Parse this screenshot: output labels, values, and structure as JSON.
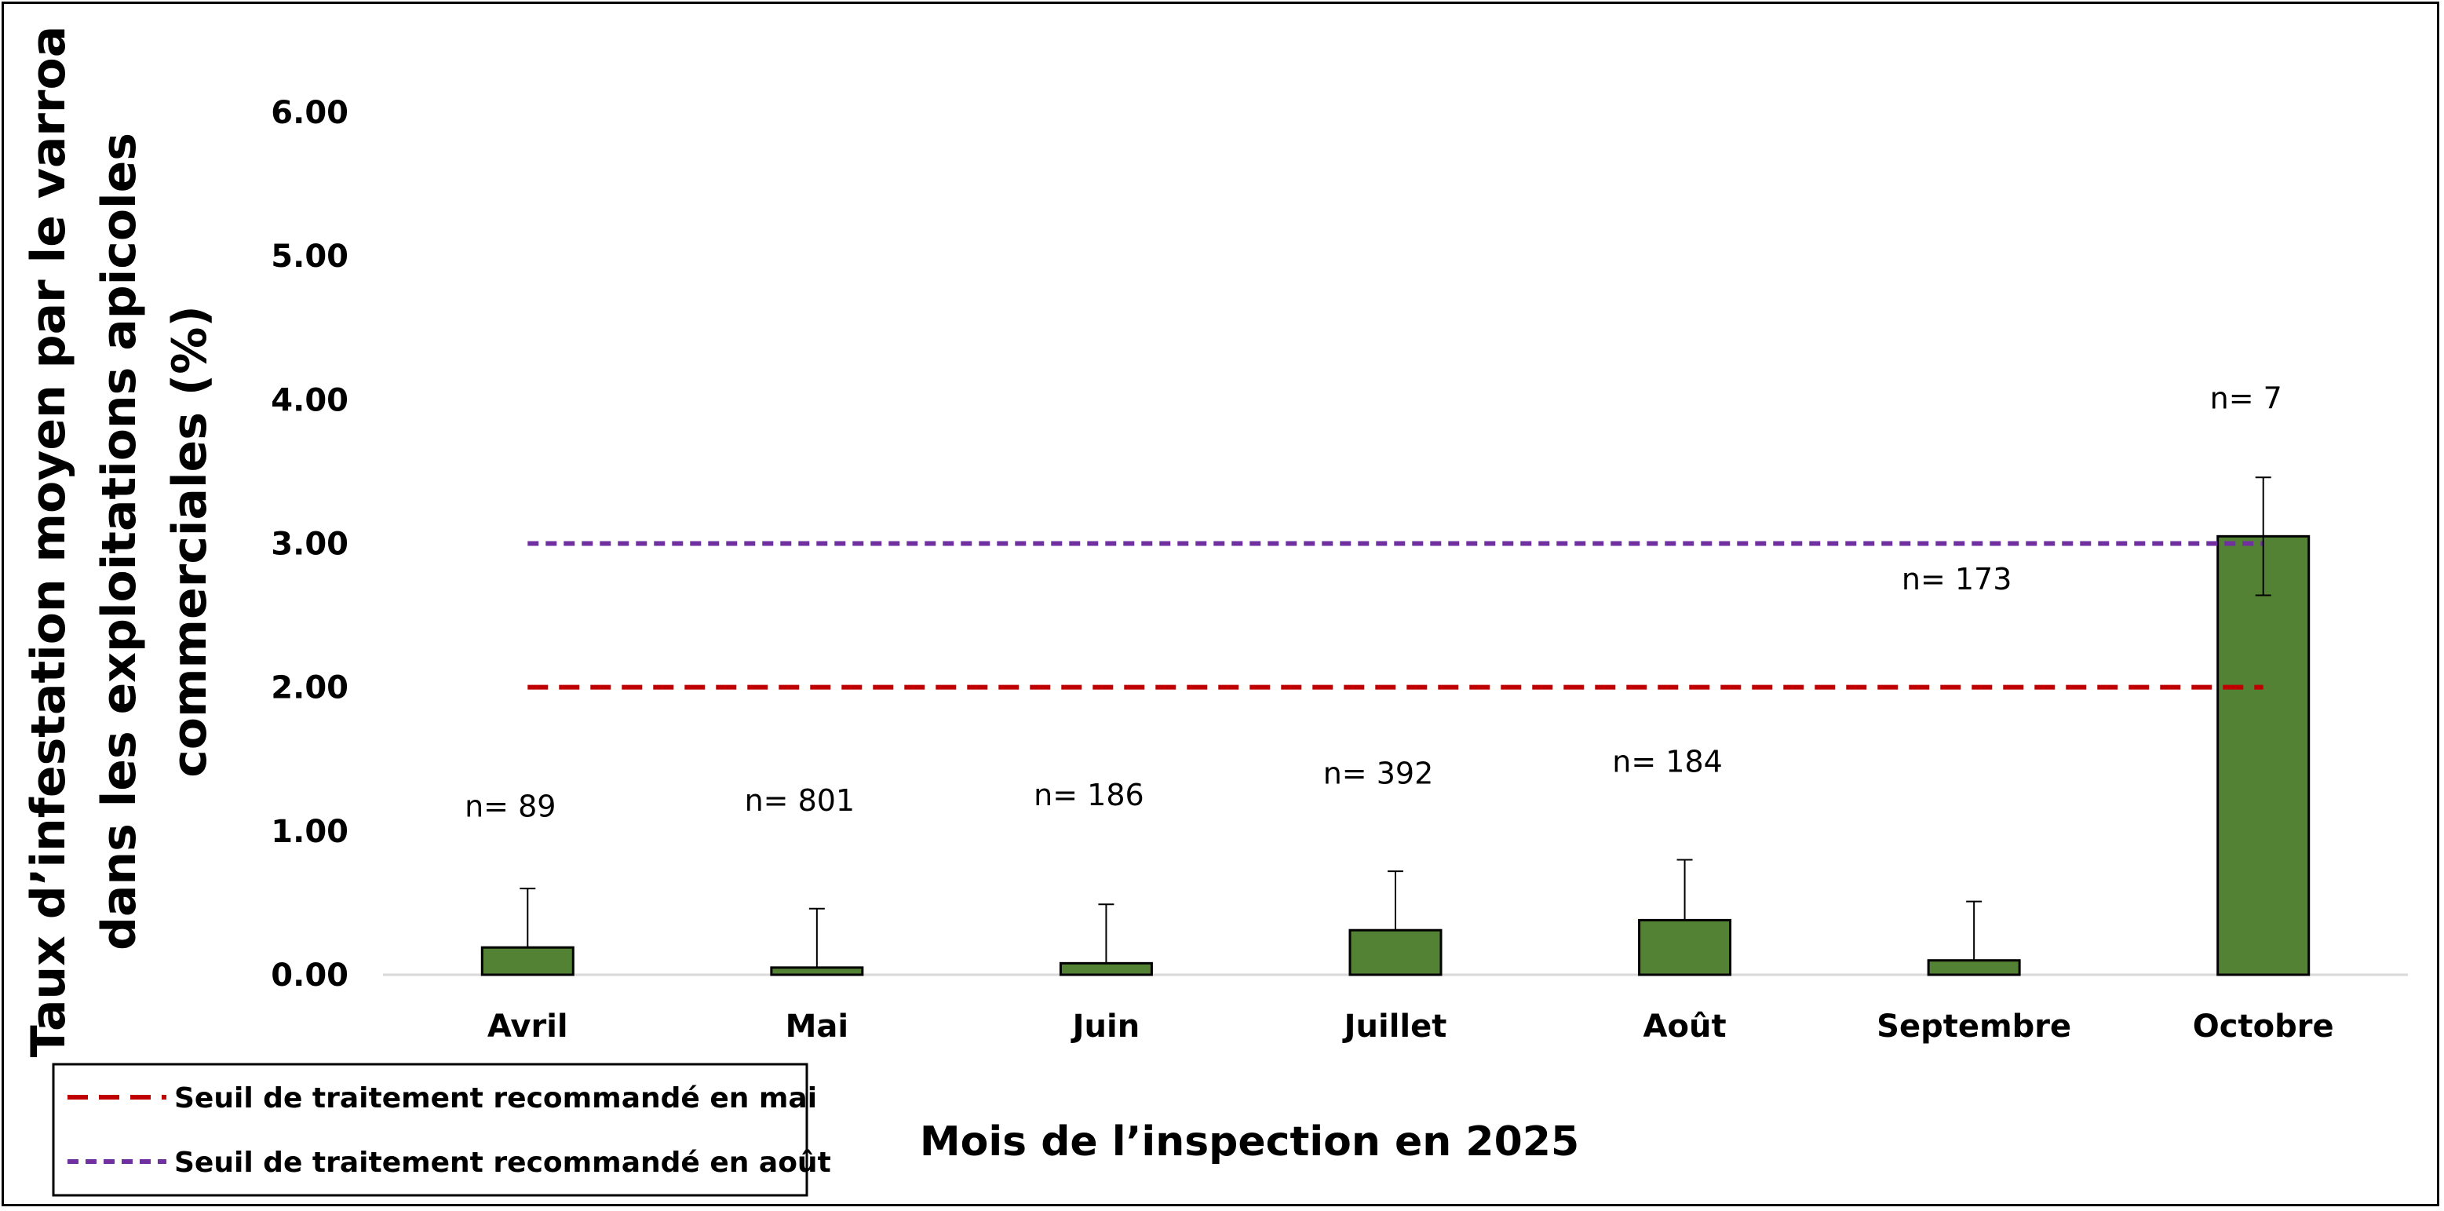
{
  "chart_data": {
    "type": "bar",
    "categories": [
      "Avril",
      "Mai",
      "Juin",
      "Juillet",
      "Août",
      "Septembre",
      "Octobre"
    ],
    "series": [
      {
        "values": [
          0.19,
          0.05,
          0.08,
          0.31,
          0.38,
          0.1,
          3.05
        ],
        "error_upper": [
          0.6,
          0.46,
          0.49,
          0.72,
          0.8,
          0.51,
          3.46
        ],
        "error_lower": [
          0.19,
          0.05,
          0.08,
          0.31,
          0.38,
          0.1,
          2.64
        ],
        "sample_labels": [
          "n= 89",
          "n= 801",
          "n= 186",
          "n= 392",
          "n= 184",
          "n= 173",
          "n= 7"
        ],
        "color": "#548235"
      }
    ],
    "sample_label_y": [
      1.1,
      1.14,
      1.18,
      1.33,
      1.41,
      2.68,
      3.94
    ],
    "thresholds": [
      {
        "name": "Seuil de traitement recommandé en mai",
        "value": 2.0,
        "color": "#C00000",
        "style": "dashed"
      },
      {
        "name": "Seuil de traitement recommandé en août",
        "value": 3.0,
        "color": "#7030A0",
        "style": "dashed"
      }
    ],
    "yticks": [
      "0.00",
      "1.00",
      "2.00",
      "3.00",
      "4.00",
      "5.00",
      "6.00"
    ],
    "ylim": [
      0,
      6
    ],
    "ylabel_lines": [
      "Taux d’infestation moyen par le varroa",
      "dans les exploitations apicoles",
      "commerciales (%)"
    ],
    "xlabel": "Mois de l’inspection en 2025",
    "grid": false,
    "legend_position": "bottom-left"
  }
}
